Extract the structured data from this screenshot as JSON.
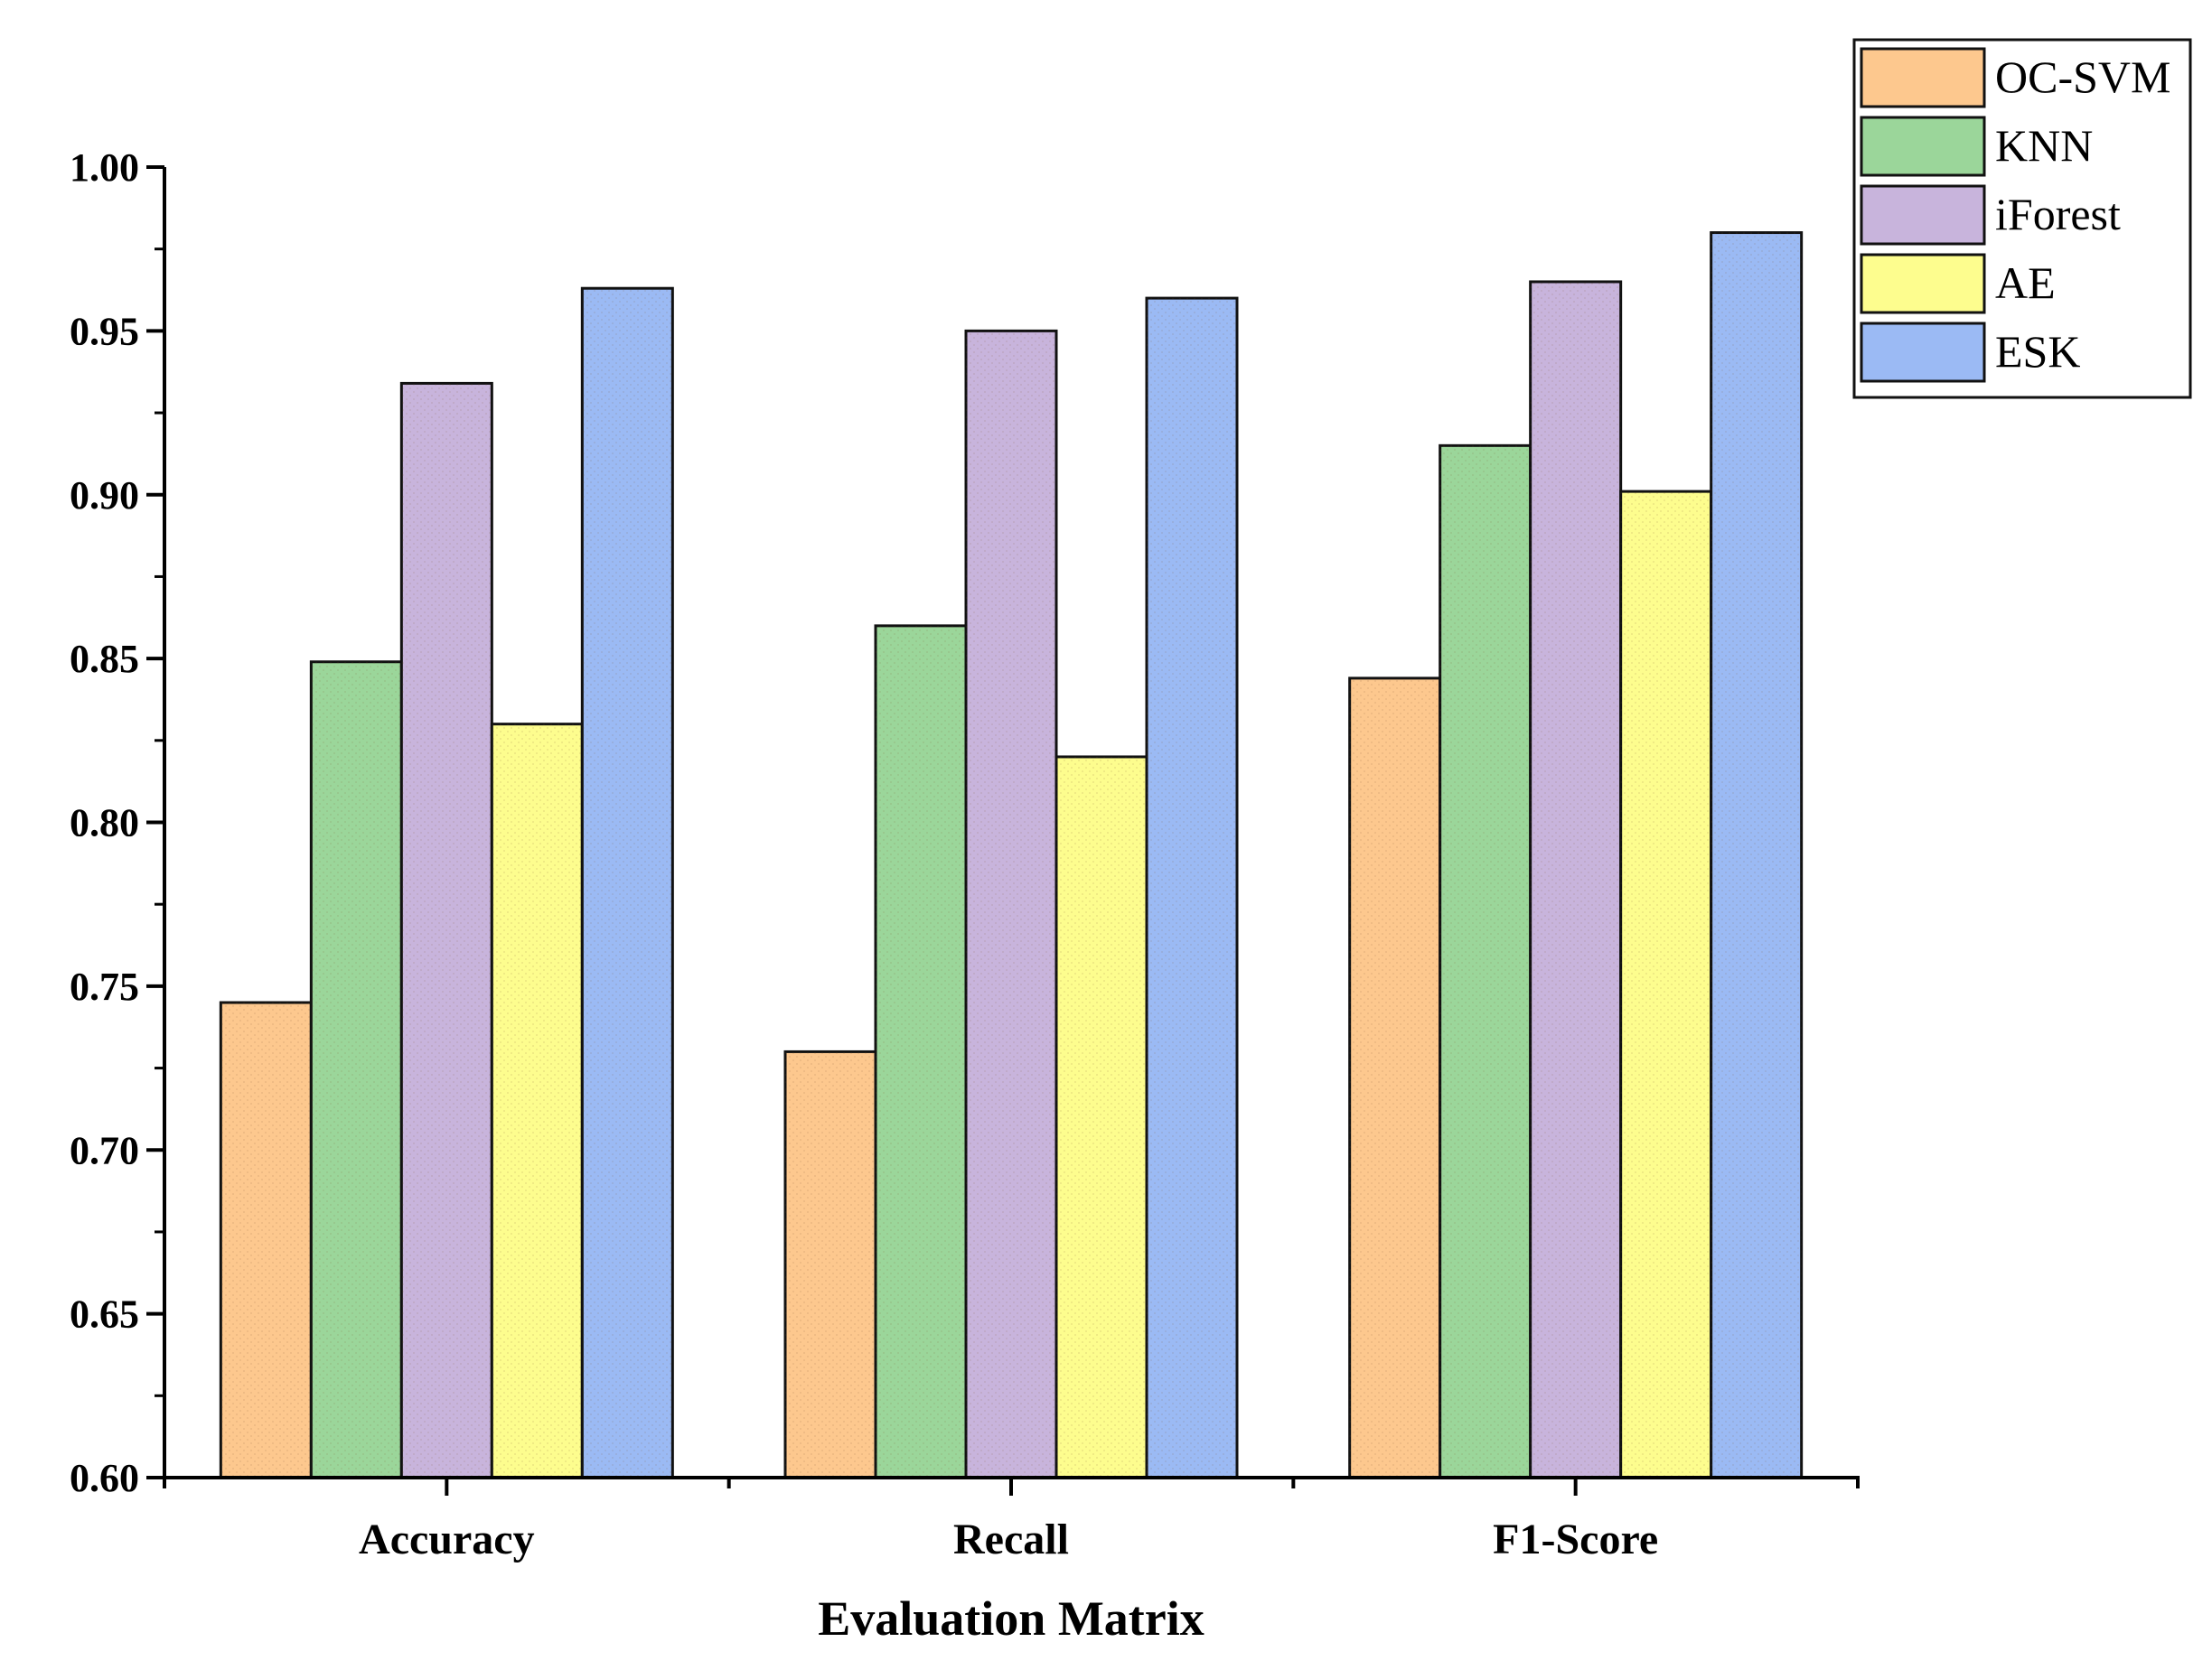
{
  "chart_data": {
    "type": "bar",
    "title": "",
    "xlabel": "Evaluation Matrix",
    "ylabel": "",
    "ylim": [
      0.6,
      1.0
    ],
    "yticks": [
      "0.60",
      "0.65",
      "0.70",
      "0.75",
      "0.80",
      "0.85",
      "0.90",
      "0.95",
      "1.00"
    ],
    "categories": [
      "Accuracy",
      "Recall",
      "F1-Score"
    ],
    "legend_position": "top-right",
    "grid": false,
    "series": [
      {
        "name": "OC-SVM",
        "color": "#fdc88e",
        "values": [
          0.745,
          0.73,
          0.844
        ]
      },
      {
        "name": "KNN",
        "color": "#9bd69a",
        "values": [
          0.849,
          0.86,
          0.915
        ]
      },
      {
        "name": "iForest",
        "color": "#c8b4dc",
        "values": [
          0.934,
          0.95,
          0.965
        ]
      },
      {
        "name": "AE",
        "color": "#fdfd8e",
        "values": [
          0.83,
          0.82,
          0.901
        ]
      },
      {
        "name": "ESK",
        "color": "#9bbaf4",
        "values": [
          0.963,
          0.96,
          0.98
        ]
      }
    ]
  }
}
